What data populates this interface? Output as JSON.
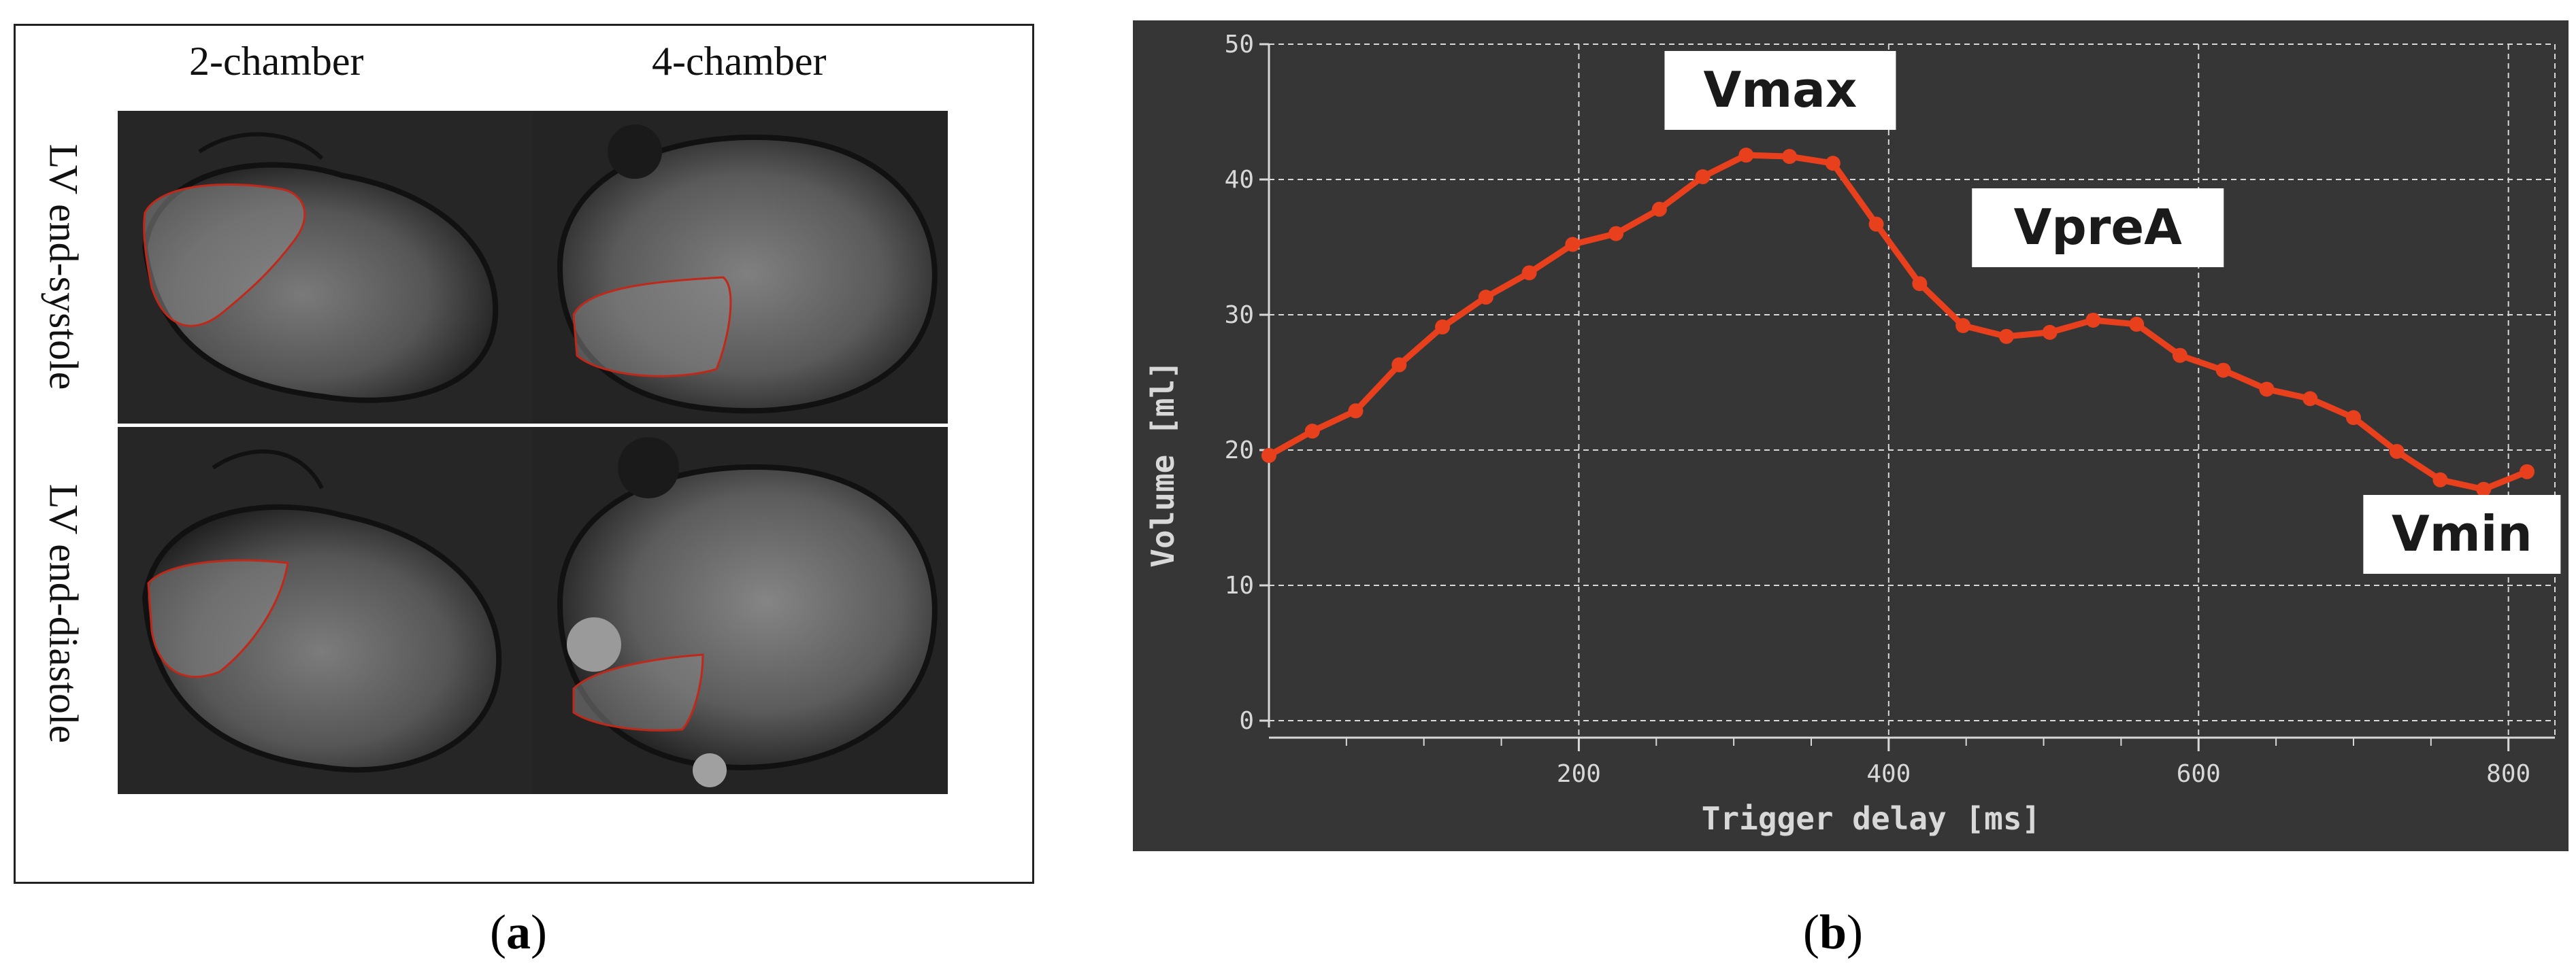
{
  "panel_a": {
    "columns": [
      "2-chamber",
      "4-chamber"
    ],
    "rows": [
      "LV end-systole",
      "LV end-diastole"
    ]
  },
  "panel_b": {
    "callouts": {
      "vmax": "Vmax",
      "vprea": "VpreA",
      "vmin": "Vmin"
    }
  },
  "sub_labels": {
    "a": "a",
    "b": "b"
  },
  "colors": {
    "line": "#e8401c",
    "grid": "#d8d8d8",
    "plot_bg": "#363636",
    "axis_text": "#d8d8d8",
    "contour": "#c0281a"
  },
  "chart_data": {
    "type": "line",
    "xlabel": "Trigger delay [ms]",
    "ylabel": "Volume [ml]",
    "xlim": [
      0,
      830
    ],
    "ylim": [
      0,
      50
    ],
    "xticks": [
      200,
      400,
      600,
      800
    ],
    "yticks": [
      0,
      10,
      20,
      30,
      40,
      50
    ],
    "grid": true,
    "series": [
      {
        "x": [
          0,
          28,
          56,
          84,
          112,
          140,
          168,
          196,
          224,
          252,
          280,
          308,
          336,
          364,
          392,
          420,
          448,
          476,
          504,
          532,
          560,
          588,
          616,
          644,
          672,
          700,
          728,
          756,
          784,
          812
        ],
        "y": [
          19.6,
          21.4,
          22.9,
          26.3,
          29.1,
          31.3,
          33.1,
          35.2,
          36.0,
          37.8,
          40.2,
          41.8,
          41.7,
          41.2,
          36.7,
          32.3,
          29.2,
          28.4,
          28.7,
          29.6,
          29.3,
          27.0,
          25.9,
          24.5,
          23.8,
          22.4,
          19.9,
          17.8,
          17.1,
          18.4
        ]
      }
    ]
  }
}
